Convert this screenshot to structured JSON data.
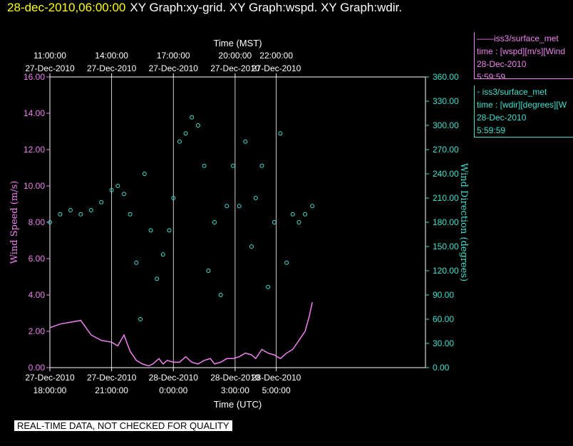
{
  "title": {
    "time": "28-dec-2010,06:00:00",
    "graphs": "XY Graph:xy-grid.  XY Graph:wspd.  XY Graph:wdir."
  },
  "legend": {
    "wspd": {
      "series": "——iss3/surface_met",
      "field": "time : [wspd][m/s][Wind",
      "date": "28-Dec-2010",
      "time": "5:59:59"
    },
    "wdir": {
      "series": "◦  iss3/surface_met",
      "field": "time : [wdir][degrees][W",
      "date": "28-Dec-2010",
      "time": "5:59:59"
    }
  },
  "quality_note": "REAL-TIME DATA, NOT CHECKED FOR QUALITY",
  "colors": {
    "wspd": "#ee82ee",
    "wdir": "#40e0d0",
    "grid": "#ffffff",
    "background": "#000000"
  },
  "chart_data": {
    "type": "line",
    "top_axis_title": "Time (MST)",
    "bottom_axis_title": "Time (UTC)",
    "ylabel_left": "Wind Speed (m/s)",
    "ylabel_right": "Wind Direction (degrees)",
    "ylim_left": [
      0,
      16
    ],
    "ylim_right": [
      0,
      360
    ],
    "x_range_hours_utc": [
      18.0,
      36.25
    ],
    "left_ticks": [
      "0.00",
      "2.00",
      "4.00",
      "6.00",
      "8.00",
      "10.00",
      "12.00",
      "14.00",
      "16.00"
    ],
    "right_ticks": [
      "0.00",
      "30.00",
      "60.00",
      "90.00",
      "120.00",
      "150.00",
      "180.00",
      "210.00",
      "240.00",
      "270.00",
      "300.00",
      "330.00",
      "360.00"
    ],
    "bottom_ticks": [
      {
        "hour": 18,
        "date": "27-Dec-2010",
        "time": "18:00:00"
      },
      {
        "hour": 21,
        "date": "27-Dec-2010",
        "time": "21:00:00"
      },
      {
        "hour": 24,
        "date": "28-Dec-2010",
        "time": "0:00:00"
      },
      {
        "hour": 27,
        "date": "28-Dec-2010",
        "time": "3:00:00"
      },
      {
        "hour": 29,
        "date": "28-Dec-2010",
        "time": "5:00:00"
      }
    ],
    "top_ticks": [
      {
        "hour": 18,
        "time": "11:00:00",
        "date": "27-Dec-2010"
      },
      {
        "hour": 21,
        "time": "14:00:00",
        "date": "27-Dec-2010"
      },
      {
        "hour": 24,
        "time": "17:00:00",
        "date": "27-Dec-2010"
      },
      {
        "hour": 27,
        "time": "20:00:00",
        "date": "27-Dec-2010"
      },
      {
        "hour": 29,
        "time": "22:00:00",
        "date": "27-Dec-2010"
      }
    ],
    "series": [
      {
        "name": "iss3/surface_met wspd",
        "style": "line",
        "points": [
          [
            18.0,
            2.2
          ],
          [
            18.5,
            2.4
          ],
          [
            19.0,
            2.5
          ],
          [
            19.5,
            2.6
          ],
          [
            20.0,
            1.8
          ],
          [
            20.5,
            1.5
          ],
          [
            21.0,
            1.4
          ],
          [
            21.3,
            1.2
          ],
          [
            21.6,
            1.8
          ],
          [
            21.9,
            0.9
          ],
          [
            22.2,
            0.4
          ],
          [
            22.5,
            0.2
          ],
          [
            22.8,
            0.1
          ],
          [
            23.0,
            0.2
          ],
          [
            23.3,
            0.5
          ],
          [
            23.5,
            0.2
          ],
          [
            23.7,
            0.4
          ],
          [
            24.0,
            0.3
          ],
          [
            24.3,
            0.3
          ],
          [
            24.6,
            0.6
          ],
          [
            24.9,
            0.3
          ],
          [
            25.2,
            0.2
          ],
          [
            25.5,
            0.4
          ],
          [
            25.8,
            0.5
          ],
          [
            26.0,
            0.2
          ],
          [
            26.3,
            0.3
          ],
          [
            26.6,
            0.5
          ],
          [
            26.9,
            0.5
          ],
          [
            27.2,
            0.6
          ],
          [
            27.5,
            0.8
          ],
          [
            27.8,
            0.7
          ],
          [
            28.0,
            0.5
          ],
          [
            28.3,
            1.0
          ],
          [
            28.6,
            0.8
          ],
          [
            28.9,
            0.7
          ],
          [
            29.2,
            0.5
          ],
          [
            29.5,
            0.8
          ],
          [
            29.8,
            1.0
          ],
          [
            30.1,
            1.5
          ],
          [
            30.4,
            2.0
          ],
          [
            30.6,
            2.8
          ],
          [
            30.75,
            3.6
          ]
        ]
      },
      {
        "name": "iss3/surface_met wdir",
        "style": "markers",
        "points": [
          [
            18.0,
            180
          ],
          [
            18.5,
            190
          ],
          [
            19.0,
            195
          ],
          [
            19.5,
            190
          ],
          [
            20.0,
            195
          ],
          [
            20.5,
            205
          ],
          [
            21.0,
            220
          ],
          [
            21.3,
            225
          ],
          [
            21.6,
            215
          ],
          [
            21.9,
            190
          ],
          [
            22.2,
            130
          ],
          [
            22.4,
            60
          ],
          [
            22.6,
            240
          ],
          [
            22.9,
            170
          ],
          [
            23.2,
            110
          ],
          [
            23.5,
            140
          ],
          [
            23.8,
            170
          ],
          [
            24.0,
            210
          ],
          [
            24.3,
            280
          ],
          [
            24.6,
            290
          ],
          [
            24.9,
            310
          ],
          [
            25.2,
            300
          ],
          [
            25.5,
            250
          ],
          [
            25.7,
            120
          ],
          [
            26.0,
            180
          ],
          [
            26.3,
            90
          ],
          [
            26.6,
            200
          ],
          [
            26.9,
            250
          ],
          [
            27.2,
            200
          ],
          [
            27.5,
            280
          ],
          [
            27.8,
            150
          ],
          [
            28.0,
            210
          ],
          [
            28.3,
            250
          ],
          [
            28.6,
            100
          ],
          [
            28.9,
            180
          ],
          [
            29.2,
            290
          ],
          [
            29.5,
            130
          ],
          [
            29.8,
            190
          ],
          [
            30.1,
            180
          ],
          [
            30.4,
            190
          ],
          [
            30.75,
            200
          ]
        ]
      }
    ]
  }
}
